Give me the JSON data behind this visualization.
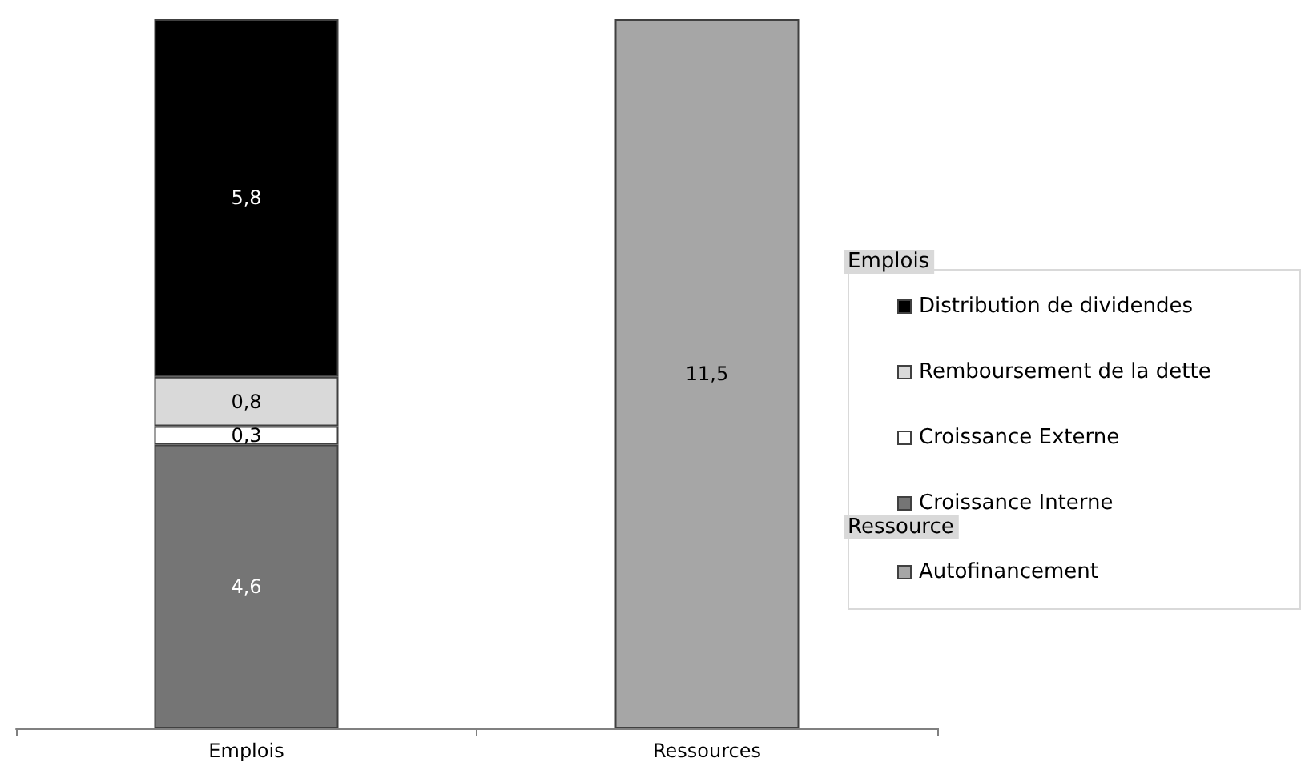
{
  "chart_data": {
    "type": "bar",
    "stacked": true,
    "categories": [
      "Emplois",
      "Ressources"
    ],
    "series": [
      {
        "name": "Croissance Interne",
        "color": "#757575",
        "values": [
          4.6,
          null
        ],
        "value_labels": [
          "4,6",
          null
        ]
      },
      {
        "name": "Croissance Externe",
        "color": "#ffffff",
        "values": [
          0.3,
          null
        ],
        "value_labels": [
          "0,3",
          null
        ]
      },
      {
        "name": "Remboursement de la dette",
        "color": "#d9d9d9",
        "values": [
          0.8,
          null
        ],
        "value_labels": [
          "0,8",
          null
        ]
      },
      {
        "name": "Distribution de dividendes",
        "color": "#000000",
        "values": [
          5.8,
          null
        ],
        "value_labels": [
          "5,8",
          null
        ]
      },
      {
        "name": "Autofinancement",
        "color": "#a6a6a6",
        "values": [
          null,
          11.5
        ],
        "value_labels": [
          null,
          "11,5"
        ]
      }
    ],
    "ylim": [
      0,
      11.5
    ],
    "tick_labels": "x",
    "legend": "right",
    "annotations": [
      "Emplois",
      "Ressource"
    ]
  }
}
